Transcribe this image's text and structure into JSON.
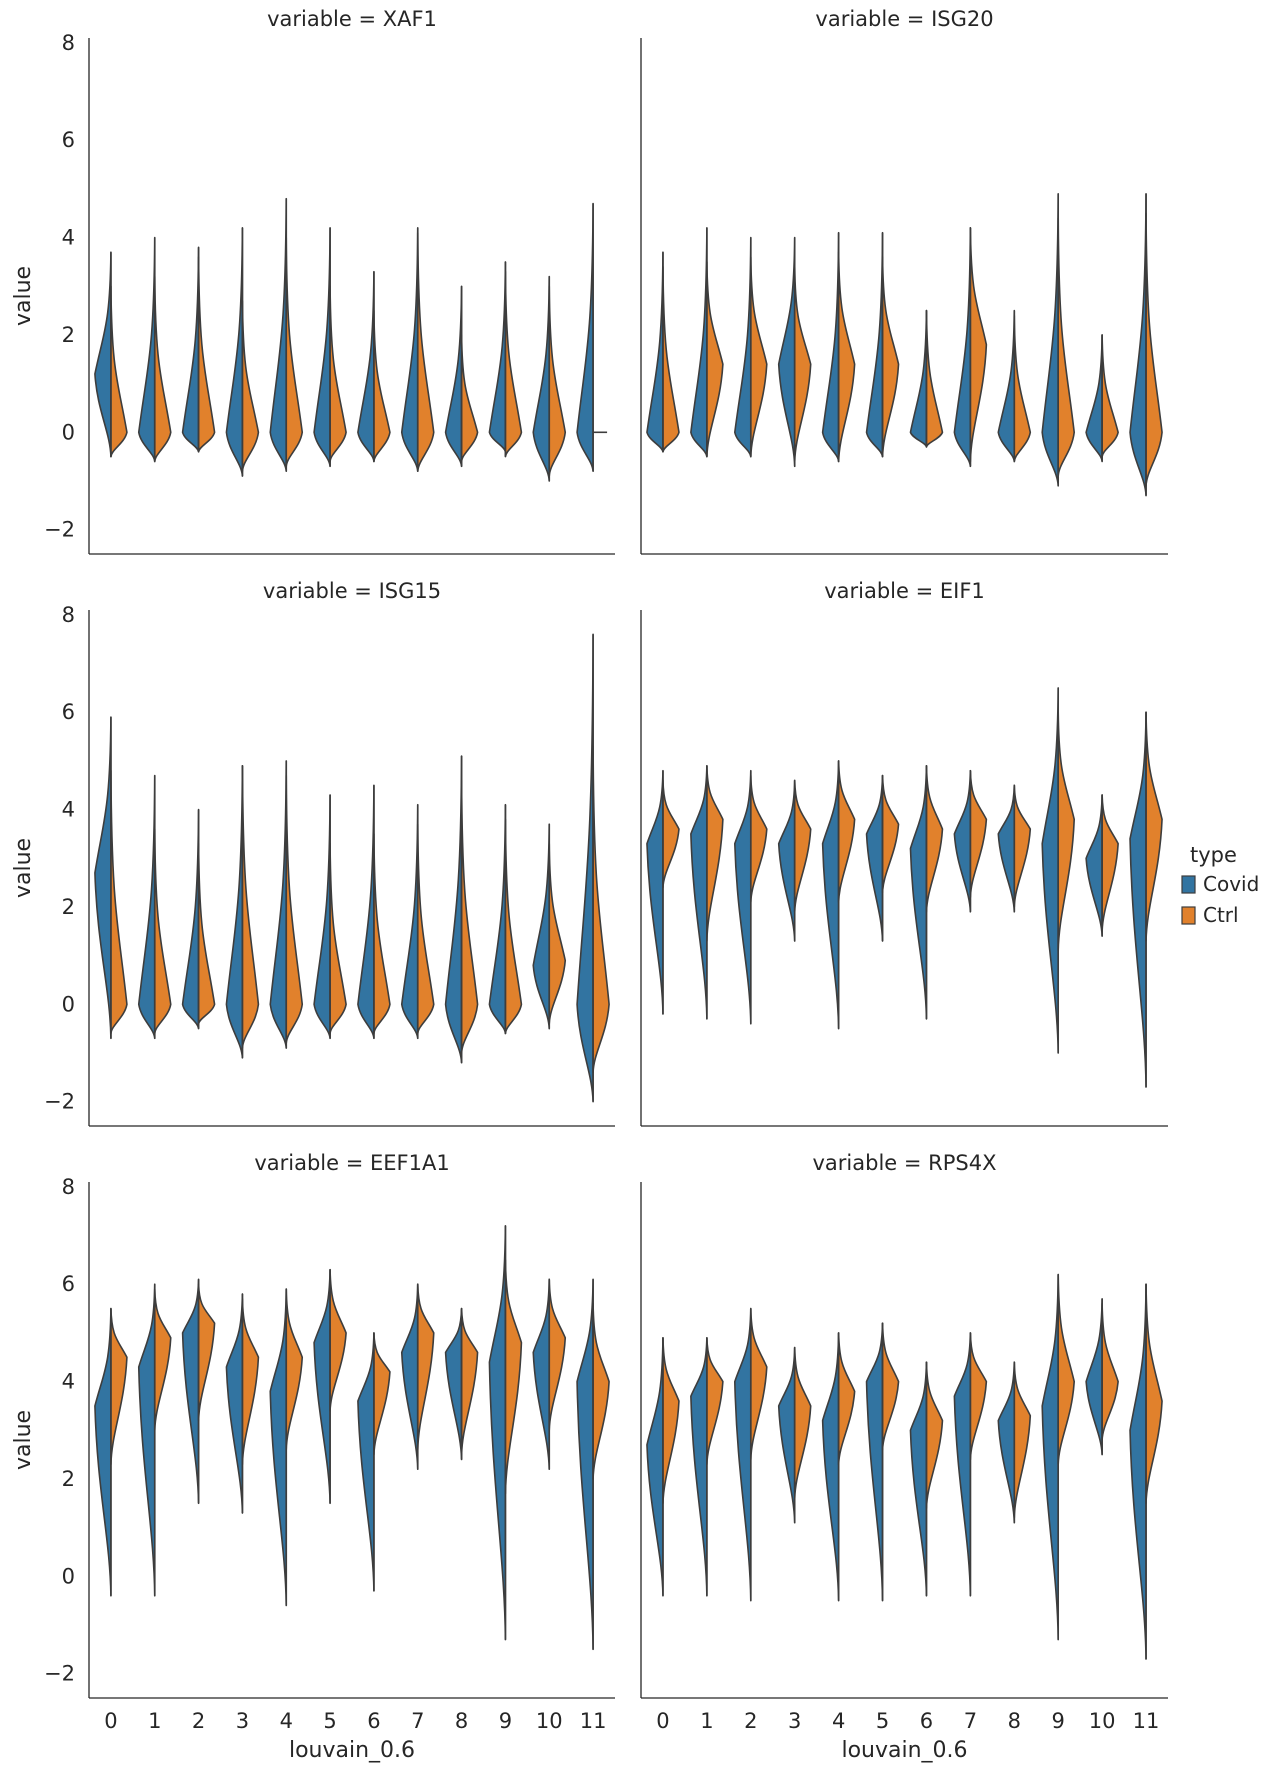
{
  "chart_data": {
    "type": "violin",
    "layout": "facet-grid 3x2, split violins by hue",
    "xlabel": "louvain_0.6",
    "ylabel": "value",
    "ylim": [
      -2.5,
      8.1
    ],
    "yticks": [
      -2,
      0,
      2,
      4,
      6,
      8
    ],
    "ytick_labels": [
      "−2",
      "0",
      "2",
      "4",
      "6",
      "8"
    ],
    "categories": [
      "0",
      "1",
      "2",
      "3",
      "4",
      "5",
      "6",
      "7",
      "8",
      "9",
      "10",
      "11"
    ],
    "legend": {
      "title": "type",
      "placement": "right",
      "entries": [
        {
          "name": "Covid",
          "color": "#3274a1"
        },
        {
          "name": "Ctrl",
          "color": "#e1812c"
        }
      ]
    },
    "panels": [
      {
        "title": "variable = XAF1",
        "series": [
          {
            "name": "Covid",
            "median": [
              1.2,
              0.0,
              0.0,
              0.0,
              0.0,
              0.0,
              0.0,
              0.0,
              0.0,
              0.0,
              0.0,
              0.0
            ],
            "min": [
              -0.5,
              -0.6,
              -0.4,
              -0.9,
              -0.8,
              -0.7,
              -0.6,
              -0.8,
              -0.7,
              -0.4,
              -1.0,
              -0.8
            ],
            "max": [
              3.7,
              4.0,
              3.8,
              4.2,
              4.8,
              4.2,
              3.3,
              4.2,
              3.0,
              3.5,
              3.2,
              4.7
            ]
          },
          {
            "name": "Ctrl",
            "median": [
              0.0,
              0.0,
              0.0,
              0.0,
              0.0,
              0.0,
              0.0,
              0.0,
              0.0,
              0.0,
              0.0,
              0.0
            ],
            "min": [
              -0.5,
              -0.6,
              -0.4,
              -0.8,
              -0.7,
              -0.6,
              -0.6,
              -0.8,
              -0.6,
              -0.5,
              -0.9,
              0.0
            ],
            "max": [
              3.0,
              3.2,
              3.6,
              2.7,
              4.0,
              3.0,
              2.5,
              4.1,
              2.0,
              3.3,
              3.0,
              0.0
            ]
          }
        ]
      },
      {
        "title": "variable = ISG20",
        "series": [
          {
            "name": "Covid",
            "median": [
              0.0,
              0.0,
              0.0,
              1.4,
              0.0,
              0.0,
              0.0,
              0.0,
              0.0,
              0.0,
              0.0,
              0.0
            ],
            "min": [
              -0.4,
              -0.5,
              -0.5,
              -0.7,
              -0.6,
              -0.5,
              -0.3,
              -0.7,
              -0.6,
              -1.1,
              -0.6,
              -1.3
            ],
            "max": [
              3.7,
              4.2,
              4.0,
              4.0,
              4.1,
              4.1,
              2.5,
              4.2,
              2.5,
              4.9,
              2.0,
              4.9
            ]
          },
          {
            "name": "Ctrl",
            "median": [
              0.0,
              1.4,
              1.4,
              1.4,
              1.4,
              1.4,
              0.0,
              1.8,
              0.0,
              0.0,
              0.0,
              0.0
            ],
            "min": [
              -0.4,
              -0.5,
              -0.5,
              -0.6,
              -0.6,
              -0.5,
              -0.3,
              -0.6,
              -0.6,
              -0.9,
              -0.5,
              -1.1
            ],
            "max": [
              3.4,
              3.5,
              3.6,
              3.4,
              3.7,
              3.6,
              2.5,
              4.2,
              2.4,
              4.4,
              2.0,
              4.5
            ]
          }
        ]
      },
      {
        "title": "variable = ISG15",
        "series": [
          {
            "name": "Covid",
            "median": [
              2.7,
              0.0,
              0.0,
              0.0,
              0.0,
              0.0,
              0.0,
              0.0,
              0.0,
              0.0,
              0.8,
              0.0
            ],
            "min": [
              -0.7,
              -0.7,
              -0.5,
              -1.1,
              -0.9,
              -0.7,
              -0.7,
              -0.7,
              -1.2,
              -0.6,
              -0.5,
              -2.0
            ],
            "max": [
              5.9,
              4.7,
              4.0,
              4.9,
              5.0,
              4.3,
              4.5,
              4.1,
              5.1,
              4.1,
              3.7,
              7.6
            ]
          },
          {
            "name": "Ctrl",
            "median": [
              0.0,
              0.0,
              0.0,
              0.0,
              0.0,
              0.0,
              0.0,
              0.0,
              0.0,
              0.0,
              0.9,
              0.0
            ],
            "min": [
              -0.6,
              -0.6,
              -0.4,
              -0.9,
              -0.8,
              -0.6,
              -0.6,
              -0.6,
              -1.0,
              -0.6,
              -0.4,
              -1.4
            ],
            "max": [
              4.8,
              3.6,
              3.3,
              4.9,
              4.7,
              3.3,
              3.5,
              3.7,
              4.6,
              3.8,
              3.3,
              5.3
            ]
          }
        ]
      },
      {
        "title": "variable = EIF1",
        "series": [
          {
            "name": "Covid",
            "median": [
              3.3,
              3.5,
              3.3,
              3.3,
              3.3,
              3.5,
              3.2,
              3.5,
              3.5,
              3.3,
              3.0,
              3.4
            ],
            "min": [
              -0.2,
              -0.3,
              -0.4,
              1.3,
              -0.5,
              1.3,
              -0.3,
              1.9,
              1.9,
              -1.0,
              1.4,
              -1.7
            ],
            "max": [
              4.8,
              4.9,
              4.8,
              4.6,
              5.0,
              4.7,
              4.9,
              4.8,
              4.5,
              6.5,
              4.3,
              6.0
            ]
          },
          {
            "name": "Ctrl",
            "median": [
              3.6,
              3.8,
              3.6,
              3.6,
              3.8,
              3.7,
              3.6,
              3.8,
              3.6,
              3.8,
              3.3,
              3.8
            ],
            "min": [
              2.4,
              1.3,
              2.1,
              1.9,
              2.1,
              2.3,
              1.9,
              2.2,
              2.0,
              1.1,
              1.5,
              1.3
            ],
            "max": [
              4.6,
              4.9,
              4.7,
              4.6,
              5.0,
              4.7,
              4.9,
              4.8,
              4.5,
              6.0,
              4.3,
              6.0
            ]
          }
        ]
      },
      {
        "title": "variable = EEF1A1",
        "series": [
          {
            "name": "Covid",
            "median": [
              3.5,
              4.3,
              5.0,
              4.3,
              3.8,
              4.8,
              3.6,
              4.6,
              4.6,
              4.4,
              4.6,
              4.0
            ],
            "min": [
              -0.4,
              -0.4,
              1.5,
              1.3,
              -0.6,
              1.5,
              -0.3,
              2.2,
              2.4,
              -1.3,
              2.2,
              -1.5
            ],
            "max": [
              5.5,
              6.0,
              6.1,
              5.8,
              5.9,
              6.3,
              5.0,
              6.0,
              5.5,
              7.2,
              6.1,
              6.1
            ]
          },
          {
            "name": "Ctrl",
            "median": [
              4.5,
              4.9,
              5.2,
              4.5,
              4.5,
              5.0,
              4.2,
              5.0,
              4.6,
              4.8,
              4.9,
              4.0
            ],
            "min": [
              2.3,
              3.0,
              3.2,
              2.3,
              2.6,
              3.4,
              2.5,
              2.6,
              2.5,
              1.7,
              3.0,
              2.0
            ],
            "max": [
              5.5,
              5.9,
              6.0,
              5.7,
              5.9,
              6.3,
              5.0,
              6.0,
              5.5,
              6.5,
              6.1,
              5.6
            ]
          }
        ]
      },
      {
        "title": "variable = RPS4X",
        "series": [
          {
            "name": "Covid",
            "median": [
              2.7,
              3.7,
              4.0,
              3.5,
              3.2,
              4.0,
              3.0,
              3.7,
              3.2,
              3.5,
              4.0,
              3.0
            ],
            "min": [
              -0.4,
              -0.4,
              -0.5,
              1.1,
              -0.5,
              -0.5,
              -0.4,
              -0.4,
              1.1,
              -1.3,
              2.5,
              -1.7
            ],
            "max": [
              4.9,
              4.9,
              5.5,
              4.7,
              5.0,
              5.2,
              4.4,
              5.0,
              4.4,
              6.2,
              5.7,
              6.0
            ]
          },
          {
            "name": "Ctrl",
            "median": [
              3.6,
              4.0,
              4.3,
              3.5,
              3.8,
              4.0,
              3.2,
              4.0,
              3.3,
              4.0,
              4.0,
              3.6
            ],
            "min": [
              1.5,
              2.3,
              2.4,
              1.6,
              2.3,
              2.6,
              1.4,
              2.4,
              1.2,
              2.3,
              2.8,
              1.5
            ],
            "max": [
              4.9,
              4.9,
              5.5,
              4.7,
              5.0,
              5.2,
              4.4,
              5.0,
              4.4,
              6.2,
              5.6,
              6.0
            ]
          }
        ]
      }
    ]
  }
}
